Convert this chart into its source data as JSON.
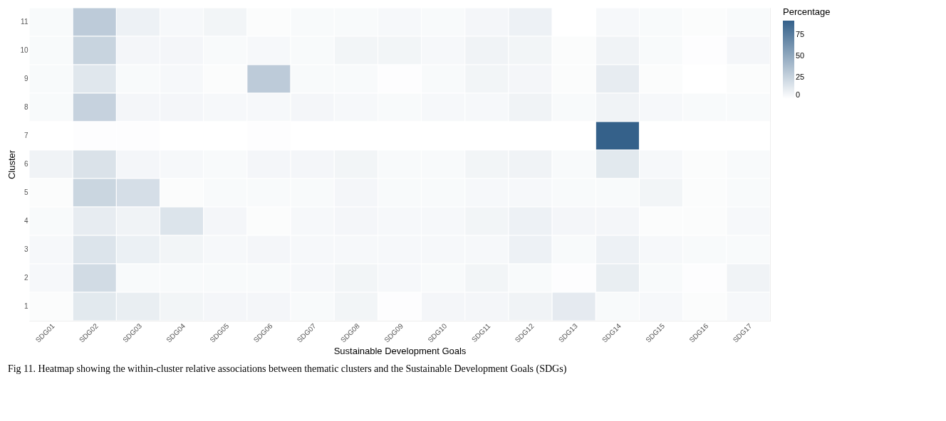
{
  "chart_data": {
    "type": "heatmap",
    "xlabel": "Sustainable Development Goals",
    "ylabel": "Cluster",
    "legend_title": "Percentage",
    "categories": [
      "SDG01",
      "SDG02",
      "SDG03",
      "SDG04",
      "SDG05",
      "SDG06",
      "SDG07",
      "SDG08",
      "SDG09",
      "SDG10",
      "SDG11",
      "SDG12",
      "SDG13",
      "SDG14",
      "SDG15",
      "SDG16",
      "SDG17"
    ],
    "y_categories": [
      "11",
      "10",
      "9",
      "8",
      "7",
      "6",
      "5",
      "4",
      "3",
      "2",
      "1"
    ],
    "cells": [
      [
        3,
        30,
        8,
        4,
        6,
        2,
        3,
        3,
        4,
        3,
        5,
        8,
        0,
        4,
        3,
        2,
        3
      ],
      [
        3,
        25,
        5,
        5,
        3,
        4,
        3,
        6,
        6,
        4,
        7,
        6,
        2,
        7,
        3,
        1,
        5
      ],
      [
        3,
        14,
        3,
        4,
        2,
        30,
        3,
        3,
        1,
        3,
        6,
        5,
        2,
        11,
        2,
        0,
        2
      ],
      [
        3,
        26,
        5,
        5,
        4,
        4,
        5,
        4,
        3,
        4,
        4,
        7,
        3,
        7,
        4,
        3,
        3
      ],
      [
        0,
        1,
        1,
        0,
        0,
        1,
        0,
        0,
        0,
        0,
        0,
        0,
        0,
        92,
        0,
        0,
        0
      ],
      [
        7,
        17,
        5,
        4,
        3,
        5,
        5,
        6,
        3,
        3,
        6,
        7,
        3,
        13,
        4,
        2,
        3
      ],
      [
        2,
        24,
        19,
        2,
        3,
        3,
        3,
        5,
        3,
        3,
        4,
        4,
        3,
        3,
        6,
        2,
        3
      ],
      [
        3,
        11,
        7,
        16,
        5,
        2,
        4,
        5,
        4,
        4,
        6,
        8,
        5,
        5,
        2,
        2,
        4
      ],
      [
        4,
        16,
        9,
        6,
        4,
        5,
        4,
        4,
        4,
        4,
        4,
        8,
        3,
        8,
        4,
        3,
        3
      ],
      [
        4,
        21,
        3,
        3,
        3,
        3,
        4,
        6,
        4,
        3,
        6,
        3,
        1,
        10,
        3,
        1,
        7
      ],
      [
        2,
        13,
        10,
        6,
        5,
        5,
        3,
        6,
        1,
        5,
        5,
        7,
        12,
        3,
        4,
        2,
        4
      ]
    ],
    "clim": [
      0,
      92
    ],
    "cticks": [
      0,
      25,
      50,
      75
    ],
    "colors": [
      "#ffffff",
      "#35618a"
    ],
    "grid": false,
    "annotations": [
      "Fig 11. Heatmap showing the within-cluster relative associations between thematic clusters and the Sustainable Development Goals (SDGs)"
    ]
  }
}
